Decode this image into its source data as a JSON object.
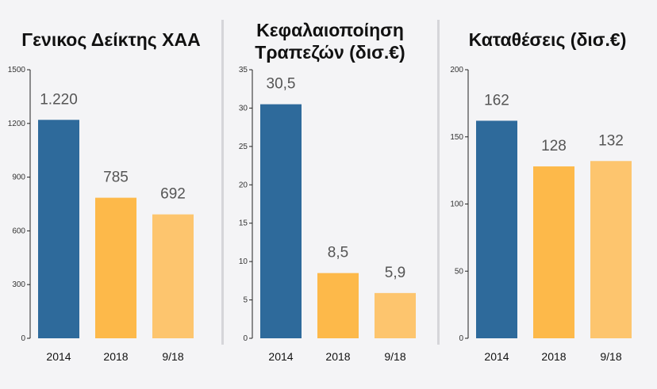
{
  "chart_data": [
    {
      "type": "bar",
      "title": "Γενικος Δείκτης ΧΑΑ",
      "categories": [
        "2014",
        "2018",
        "9/18"
      ],
      "values": [
        1220,
        785,
        692
      ],
      "value_labels": [
        "1.220",
        "785",
        "692"
      ],
      "ylim": [
        0,
        1500
      ],
      "yticks": [
        0,
        300,
        600,
        900,
        1200,
        1500
      ],
      "colors": [
        "#2e6a9b",
        "#fdb94a",
        "#fdc56e"
      ],
      "grid": false
    },
    {
      "type": "bar",
      "title": "Κεφαλαιοποίηση\nΤραπεζών (δισ.€)",
      "categories": [
        "2014",
        "2018",
        "9/18"
      ],
      "values": [
        30.5,
        8.5,
        5.9
      ],
      "value_labels": [
        "30,5",
        "8,5",
        "5,9"
      ],
      "ylim": [
        0,
        35
      ],
      "yticks": [
        0,
        5,
        10,
        15,
        20,
        25,
        30,
        35
      ],
      "colors": [
        "#2e6a9b",
        "#fdb94a",
        "#fdc56e"
      ],
      "grid": false
    },
    {
      "type": "bar",
      "title": "Καταθέσεις (δισ.€)",
      "categories": [
        "2014",
        "2018",
        "9/18"
      ],
      "values": [
        162,
        128,
        132
      ],
      "value_labels": [
        "162",
        "128",
        "132"
      ],
      "ylim": [
        0,
        200
      ],
      "yticks": [
        0,
        50,
        100,
        150,
        200
      ],
      "colors": [
        "#2e6a9b",
        "#fdb94a",
        "#fdc56e"
      ],
      "grid": false
    }
  ]
}
